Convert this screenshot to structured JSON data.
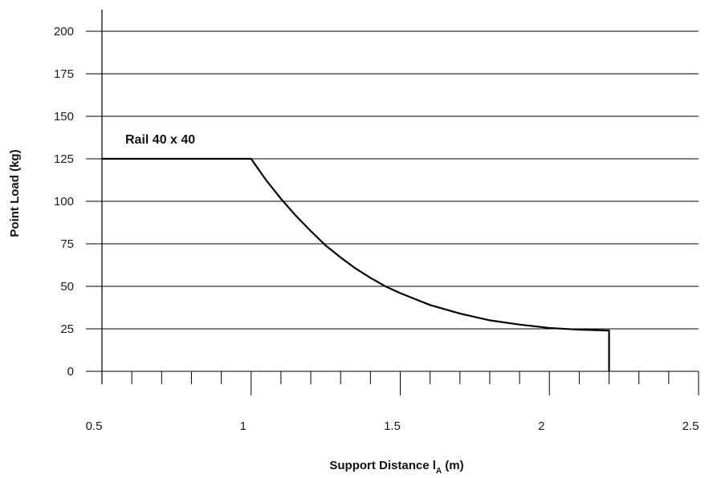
{
  "chart_data": {
    "type": "line",
    "title": "",
    "xlabel": "Support Distance l",
    "xlabel_sub": "A",
    "xlabel_unit": " (m)",
    "ylabel": "Point Load (kg)",
    "xlim": [
      0.5,
      2.5
    ],
    "ylim": [
      0,
      200
    ],
    "x_ticks": [
      0.5,
      1,
      1.5,
      2,
      2.5
    ],
    "x_tick_labels": [
      "0.5",
      "1",
      "1.5",
      "2",
      "2.5"
    ],
    "x_minor_step": 0.1,
    "y_ticks": [
      0,
      25,
      50,
      75,
      100,
      125,
      150,
      175,
      200
    ],
    "y_tick_labels": [
      "0",
      "25",
      "50",
      "75",
      "100",
      "125",
      "150",
      "175",
      "200"
    ],
    "grid": "horizontal",
    "annotation": "Rail 40 x 40",
    "series": [
      {
        "x": [
          0.5,
          1.0,
          1.05,
          1.1,
          1.15,
          1.2,
          1.25,
          1.3,
          1.35,
          1.4,
          1.45,
          1.5,
          1.6,
          1.7,
          1.8,
          1.9,
          2.0,
          2.1,
          2.2,
          2.2
        ],
        "y": [
          125,
          125,
          112.5,
          101.5,
          91.5,
          82.5,
          74,
          67,
          60.5,
          55,
          50,
          46,
          39,
          34,
          30,
          27.5,
          25.5,
          24.5,
          24,
          0
        ]
      }
    ],
    "colors": {
      "line": "#000000",
      "grid": "#000000",
      "axis": "#000000"
    }
  }
}
